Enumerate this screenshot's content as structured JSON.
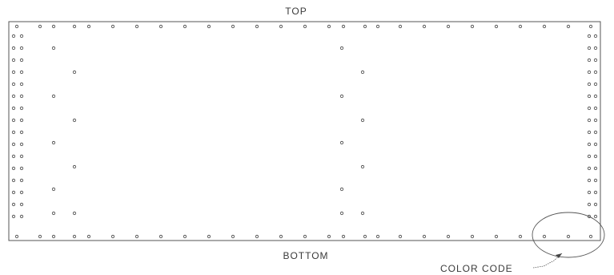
{
  "drawing": {
    "labels": {
      "top": "TOP",
      "bottom": "BOTTOM",
      "color_code": "COLOR CODE"
    },
    "colors": {
      "line": "#555555",
      "hole_stroke": "#444444",
      "text": "#3a3a3a",
      "background": "#ffffff"
    }
  }
}
